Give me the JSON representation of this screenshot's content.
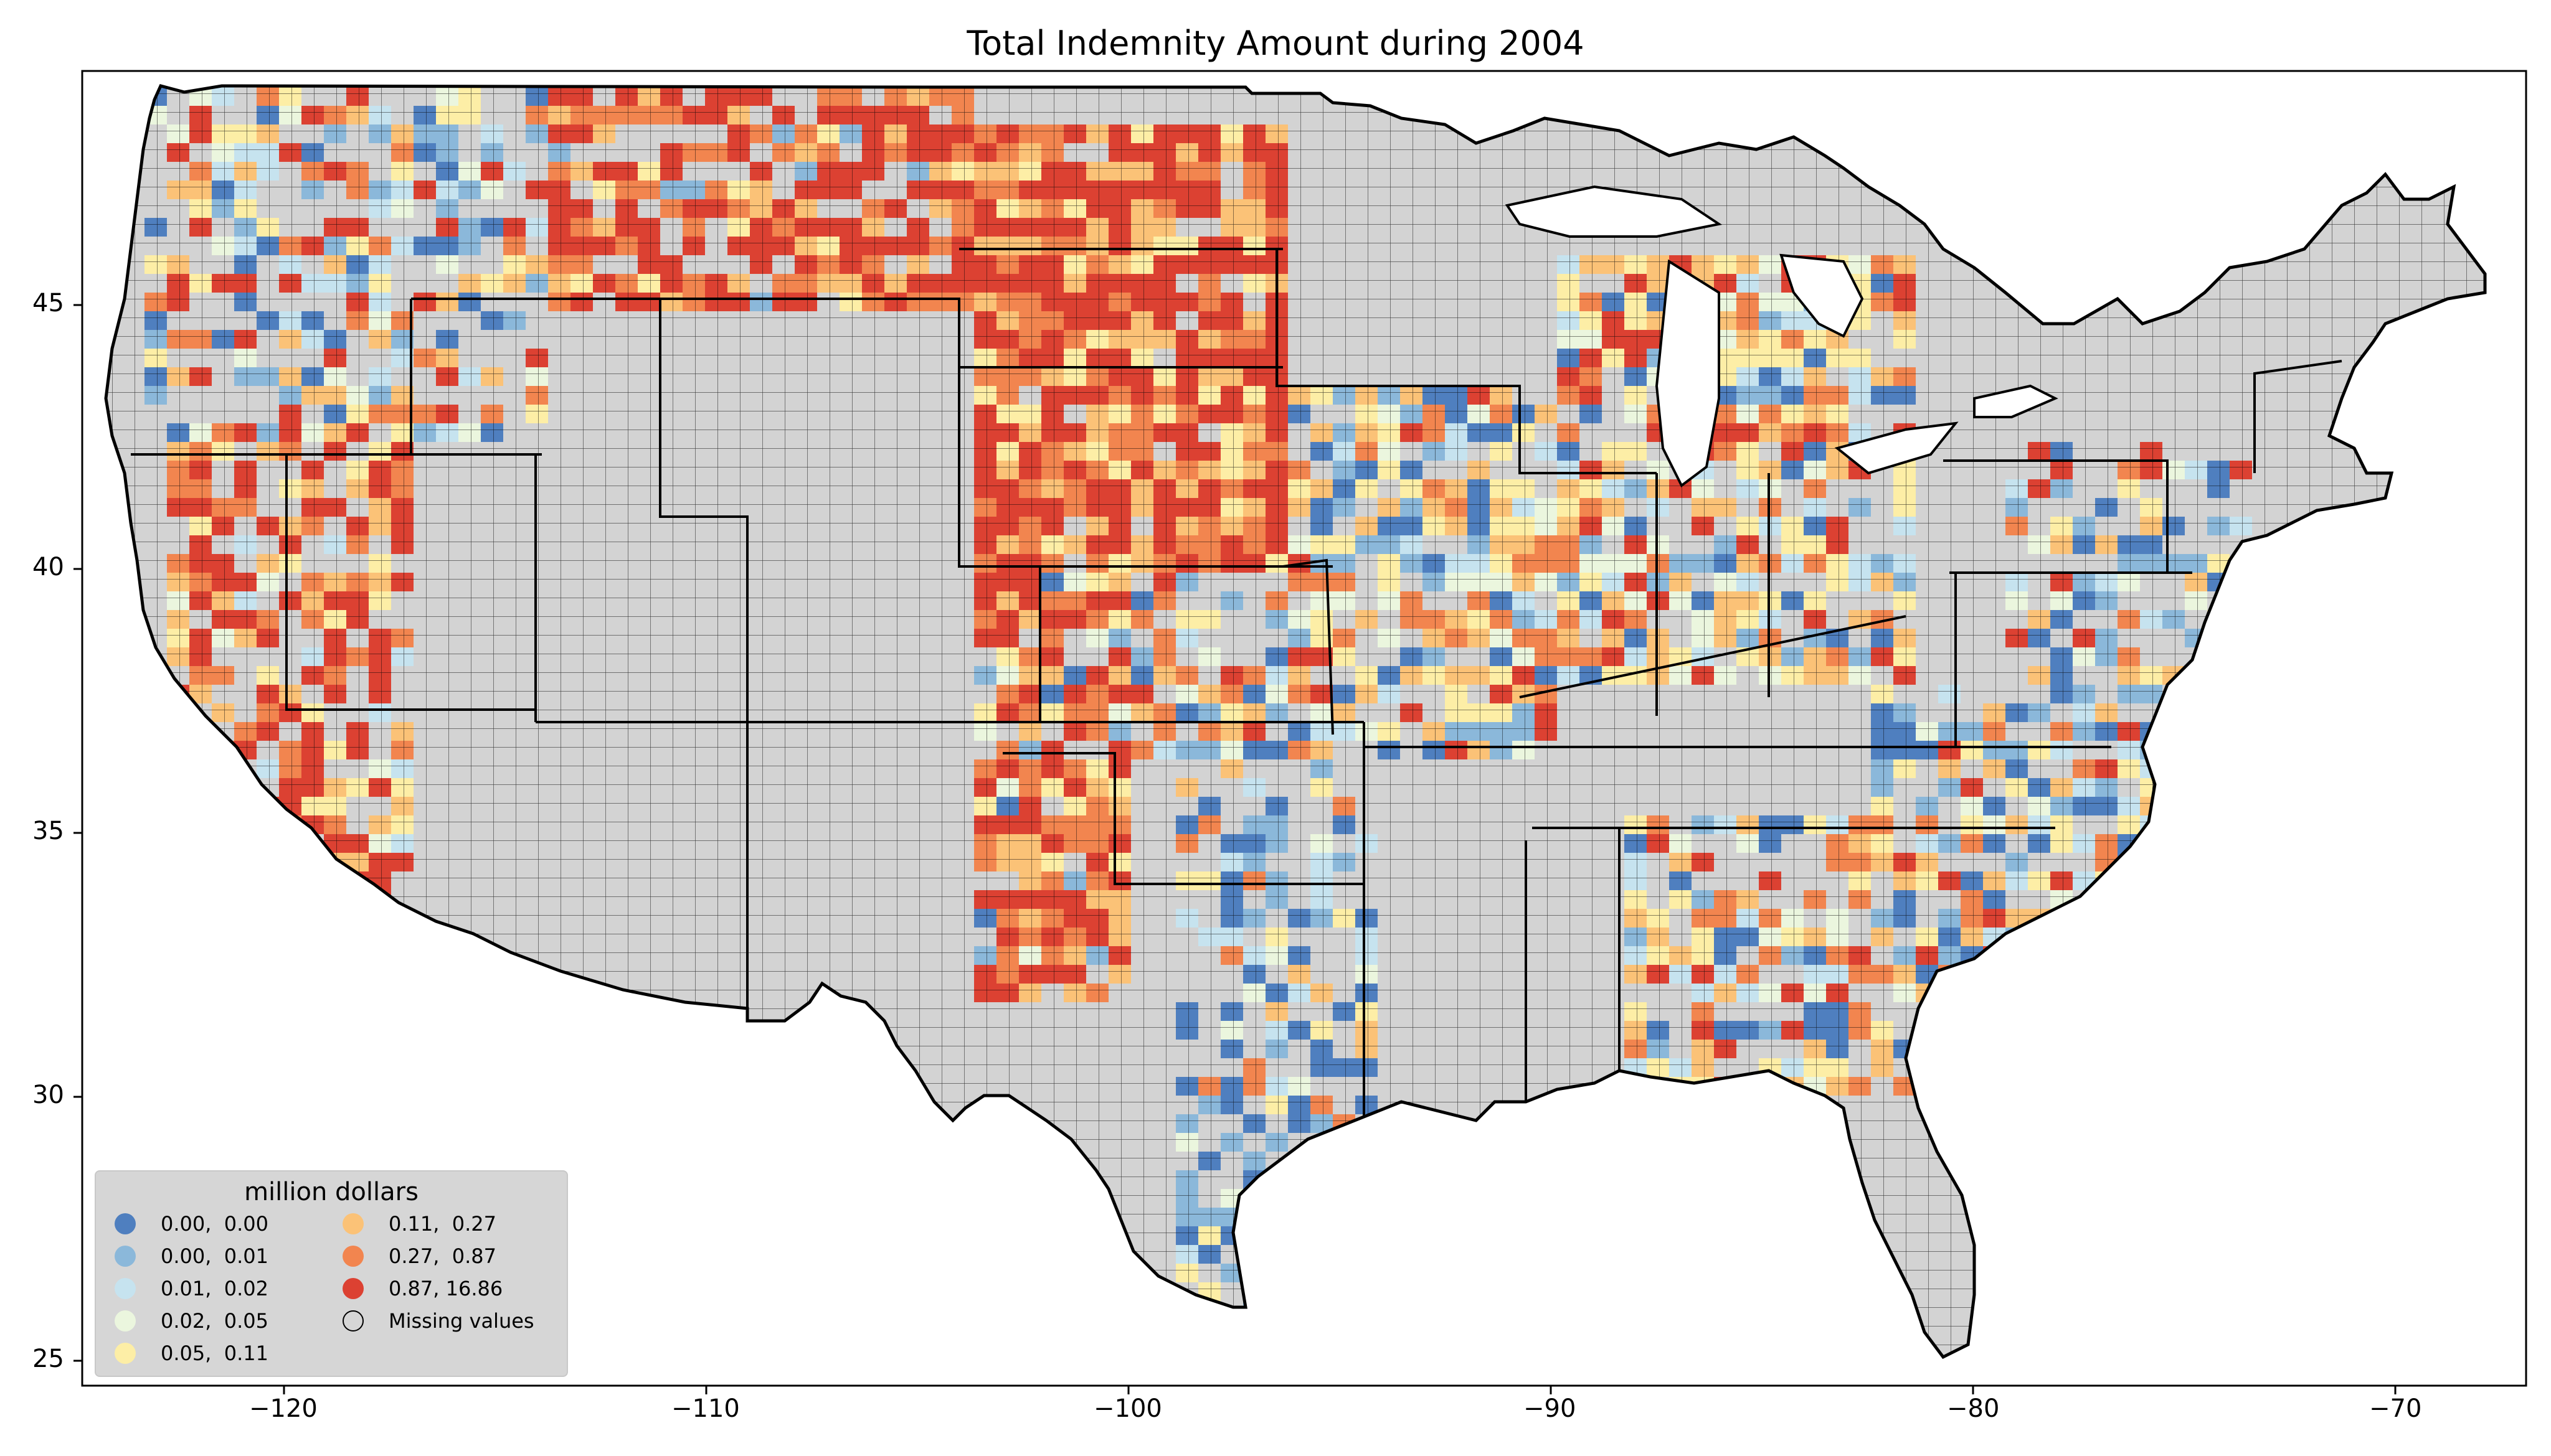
{
  "title": "Total Indemnity Amount during 2004",
  "legend": {
    "title": "million dollars",
    "items": [
      {
        "label": "0.00,  0.00",
        "color": "#4f7fbf"
      },
      {
        "label": "0.00,  0.01",
        "color": "#8bb8da"
      },
      {
        "label": "0.01,  0.02",
        "color": "#c6e3ef"
      },
      {
        "label": "0.02,  0.05",
        "color": "#ebf6de"
      },
      {
        "label": "0.05,  0.11",
        "color": "#fdeea6"
      },
      {
        "label": "0.11,  0.27",
        "color": "#fbc277"
      },
      {
        "label": "0.27,  0.87",
        "color": "#f2854f"
      },
      {
        "label": "0.87, 16.86",
        "color": "#dc4132"
      },
      {
        "label": "Missing values",
        "color": "#d3d3d3"
      }
    ]
  },
  "missing_color": "#d3d3d3",
  "axes": {
    "x_ticks": [
      "−120",
      "−110",
      "−100",
      "−90",
      "−80",
      "−70"
    ],
    "y_ticks": [
      "25",
      "30",
      "35",
      "40",
      "45"
    ]
  }
}
